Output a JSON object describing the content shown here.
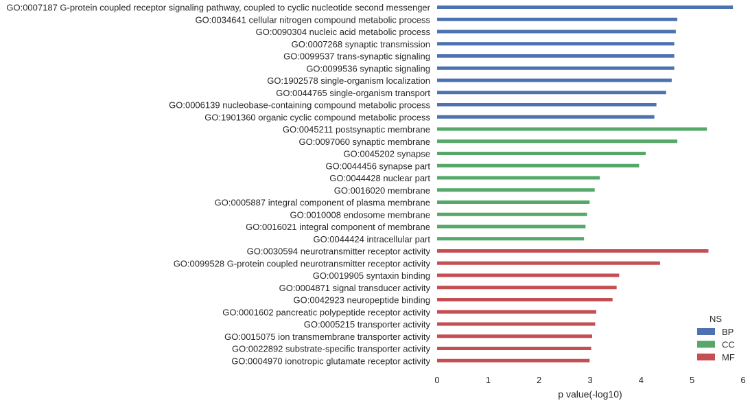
{
  "chart_data": {
    "type": "bar",
    "orientation": "horizontal",
    "title": "",
    "xlabel": "p value(-log10)",
    "ylabel": "",
    "xlim": [
      0,
      6
    ],
    "xticks": [
      "0",
      "1",
      "2",
      "3",
      "4",
      "5",
      "6"
    ],
    "grid": false,
    "legend": {
      "title": "NS",
      "position": "bottom-right",
      "entries": [
        {
          "label": "BP",
          "color": "#4c72b0"
        },
        {
          "label": "CC",
          "color": "#55a868"
        },
        {
          "label": "MF",
          "color": "#c44e52"
        }
      ]
    },
    "categories": [
      "GO:0007187 G-protein coupled receptor signaling pathway, coupled to cyclic nucleotide second messenger",
      "GO:0034641 cellular nitrogen compound metabolic process",
      "GO:0090304 nucleic acid metabolic process",
      "GO:0007268 synaptic transmission",
      "GO:0099537 trans-synaptic signaling",
      "GO:0099536 synaptic signaling",
      "GO:1902578 single-organism localization",
      "GO:0044765 single-organism transport",
      "GO:0006139 nucleobase-containing compound metabolic process",
      "GO:1901360 organic cyclic compound metabolic process",
      "GO:0045211 postsynaptic membrane",
      "GO:0097060 synaptic membrane",
      "GO:0045202 synapse",
      "GO:0044456 synapse part",
      "GO:0044428 nuclear part",
      "GO:0016020 membrane",
      "GO:0005887 integral component of plasma membrane",
      "GO:0010008 endosome membrane",
      "GO:0016021 integral component of membrane",
      "GO:0044424 intracellular part",
      "GO:0030594 neurotransmitter receptor activity",
      "GO:0099528 G-protein coupled neurotransmitter receptor activity",
      "GO:0019905 syntaxin binding",
      "GO:0004871 signal transducer activity",
      "GO:0042923 neuropeptide binding",
      "GO:0001602 pancreatic polypeptide receptor activity",
      "GO:0005215 transporter activity",
      "GO:0015075 ion transmembrane transporter activity",
      "GO:0022892 substrate-specific transporter activity",
      "GO:0004970 ionotropic glutamate receptor activity"
    ],
    "groups": [
      "BP",
      "BP",
      "BP",
      "BP",
      "BP",
      "BP",
      "BP",
      "BP",
      "BP",
      "BP",
      "CC",
      "CC",
      "CC",
      "CC",
      "CC",
      "CC",
      "CC",
      "CC",
      "CC",
      "CC",
      "MF",
      "MF",
      "MF",
      "MF",
      "MF",
      "MF",
      "MF",
      "MF",
      "MF",
      "MF"
    ],
    "values": [
      5.8,
      4.71,
      4.68,
      4.65,
      4.65,
      4.65,
      4.6,
      4.49,
      4.3,
      4.26,
      5.29,
      4.71,
      4.09,
      3.96,
      3.19,
      3.09,
      2.99,
      2.94,
      2.91,
      2.88,
      5.32,
      4.37,
      3.57,
      3.52,
      3.44,
      3.12,
      3.1,
      3.04,
      3.02,
      2.99
    ]
  }
}
